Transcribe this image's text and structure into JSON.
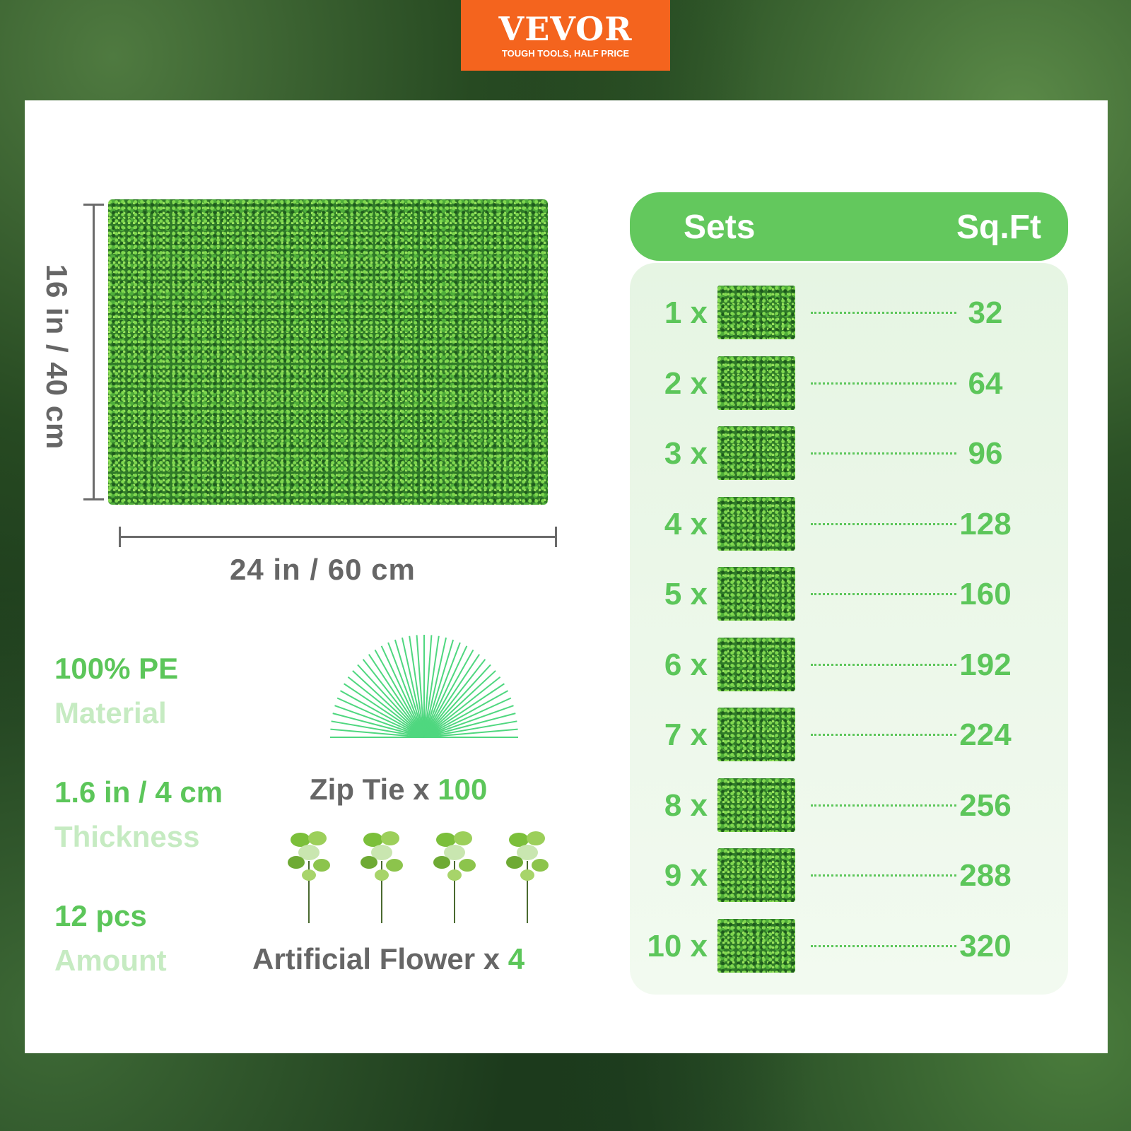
{
  "logo": {
    "brand": "VEVOR",
    "mark": "®",
    "tagline": "TOUGH TOOLS, HALF PRICE",
    "color": "#f4641e"
  },
  "dimensions": {
    "width": "24 in / 60 cm",
    "height": "16 in / 40 cm"
  },
  "specs": [
    {
      "value": "100% PE",
      "label": "Material"
    },
    {
      "value": "1.6 in / 4 cm",
      "label": "Thickness"
    },
    {
      "value": "12 pcs",
      "label": "Amount"
    }
  ],
  "accessories": {
    "zip_tie": {
      "label": "Zip Tie x ",
      "count": "100"
    },
    "flower": {
      "label": "Artificial Flower x ",
      "count": "4"
    }
  },
  "table": {
    "headers": [
      "Sets",
      "Sq.Ft"
    ],
    "rows": [
      {
        "sets": "1 x",
        "sqft": "32"
      },
      {
        "sets": "2 x",
        "sqft": "64"
      },
      {
        "sets": "3 x",
        "sqft": "96"
      },
      {
        "sets": "4 x",
        "sqft": "128"
      },
      {
        "sets": "5 x",
        "sqft": "160"
      },
      {
        "sets": "6 x",
        "sqft": "192"
      },
      {
        "sets": "7 x",
        "sqft": "224"
      },
      {
        "sets": "8 x",
        "sqft": "256"
      },
      {
        "sets": "9 x",
        "sqft": "288"
      },
      {
        "sets": "10 x",
        "sqft": "320"
      }
    ]
  },
  "colors": {
    "accent": "#5cc65a",
    "header": "#63c85d",
    "muted": "#c6ebc2",
    "text": "#666666"
  }
}
